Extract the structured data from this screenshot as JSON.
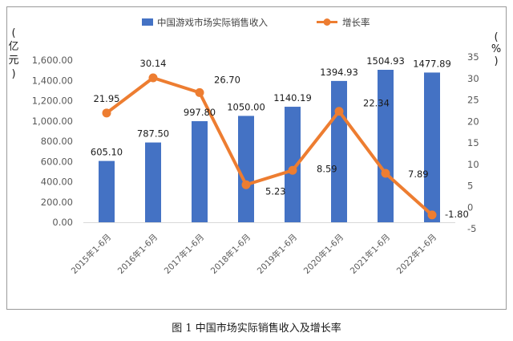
{
  "caption": "图 1 中国市场实际销售收入及增长率",
  "chart_data": {
    "type": "bar+line",
    "categories": [
      "2015年1-6月",
      "2016年1-6月",
      "2017年1-6月",
      "2018年1-6月",
      "2019年1-6月",
      "2020年1-6月",
      "2021年1-6月",
      "2022年1-6月"
    ],
    "series": [
      {
        "name": "中国游戏市场实际销售收入",
        "type": "bar",
        "axis": "left",
        "color": "#4472C4",
        "values": [
          605.1,
          787.5,
          997.8,
          1050.0,
          1140.19,
          1394.93,
          1504.93,
          1477.89
        ],
        "labels": [
          "605.10",
          "787.50",
          "997.80",
          "1050.00",
          "1140.19",
          "1394.93",
          "1504.93",
          "1477.89"
        ]
      },
      {
        "name": "增长率",
        "type": "line",
        "axis": "right",
        "color": "#ED7D31",
        "values": [
          21.95,
          30.14,
          26.7,
          5.23,
          8.59,
          22.34,
          7.89,
          -1.8
        ],
        "labels": [
          "21.95",
          "30.14",
          "26.70",
          "5.23",
          "8.59",
          "22.34",
          "7.89",
          "-1.80"
        ]
      }
    ],
    "y_left": {
      "label": "亿元",
      "label_chars": [
        "(",
        "亿",
        "元",
        ")"
      ],
      "ticks": [
        "0.00",
        "200.00",
        "400.00",
        "600.00",
        "800.00",
        "1,000.00",
        "1,200.00",
        "1,400.00",
        "1,600.00"
      ],
      "tick_values": [
        0,
        200,
        400,
        600,
        800,
        1000,
        1200,
        1400,
        1600
      ],
      "ylim": [
        0,
        1600
      ]
    },
    "y_right": {
      "label": "%",
      "label_chars": [
        "(",
        "%",
        ")"
      ],
      "ticks": [
        "-5",
        "0",
        "5",
        "10",
        "15",
        "20",
        "25",
        "30",
        "35"
      ],
      "tick_values": [
        -5,
        0,
        5,
        10,
        15,
        20,
        25,
        30,
        35
      ],
      "ylim": [
        -5,
        35
      ]
    },
    "grid": false,
    "legend_position": "top"
  }
}
